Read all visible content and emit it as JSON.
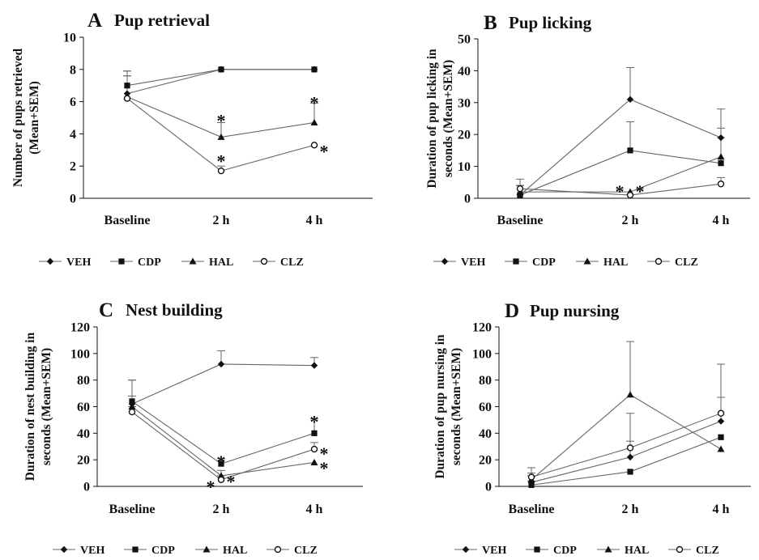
{
  "legend": [
    {
      "name": "VEH",
      "marker": "diamond"
    },
    {
      "name": "CDP",
      "marker": "square"
    },
    {
      "name": "HAL",
      "marker": "triangle"
    },
    {
      "name": "CLZ",
      "marker": "circle-open"
    }
  ],
  "colors": {
    "line": "#666666",
    "marker": "#111111",
    "text": "#111111"
  },
  "chart_data": [
    {
      "type": "line",
      "letter": "A",
      "title": "Pup retrieval",
      "ylabel_lines": [
        "Number of pups retrieved",
        "(Mean+SEM)"
      ],
      "categories": [
        "Baseline",
        "2 h",
        "4 h"
      ],
      "ylim": [
        0,
        10
      ],
      "yticks": [
        0,
        2,
        4,
        6,
        8,
        10
      ],
      "grid": false,
      "legend_position": "bottom",
      "series": [
        {
          "name": "VEH",
          "values": [
            6.5,
            8.0,
            8.0
          ],
          "sem": [
            1.4,
            0,
            0
          ]
        },
        {
          "name": "CDP",
          "values": [
            7.0,
            8.0,
            8.0
          ],
          "sem": [
            0.9,
            0,
            0
          ]
        },
        {
          "name": "HAL",
          "values": [
            6.3,
            3.8,
            4.7
          ],
          "sem": [
            1.3,
            0.9,
            1.2
          ]
        },
        {
          "name": "CLZ",
          "values": [
            6.2,
            1.7,
            3.3
          ],
          "sem": [
            1.4,
            0.3,
            0.0
          ]
        }
      ],
      "annotations": [
        {
          "text": "*",
          "x": "2 h",
          "y": 5.1
        },
        {
          "text": "*",
          "x": "2 h",
          "y": 2.6
        },
        {
          "text": "*",
          "x": "4 h",
          "y": 6.2
        },
        {
          "text": "*",
          "x": "4 h",
          "y": 3.2,
          "side": "right"
        }
      ]
    },
    {
      "type": "line",
      "letter": "B",
      "title": "Pup licking",
      "ylabel_lines": [
        "Duration of pup licking in",
        "seconds (Mean+SEM)"
      ],
      "categories": [
        "Baseline",
        "2 h",
        "4 h"
      ],
      "ylim": [
        0,
        50
      ],
      "yticks": [
        0,
        10,
        20,
        30,
        40,
        50
      ],
      "grid": false,
      "legend_position": "bottom",
      "series": [
        {
          "name": "VEH",
          "values": [
            1,
            31,
            19
          ],
          "sem": [
            3,
            10,
            9
          ]
        },
        {
          "name": "CDP",
          "values": [
            1,
            15,
            11
          ],
          "sem": [
            3,
            9,
            8
          ]
        },
        {
          "name": "HAL",
          "values": [
            2,
            2,
            13
          ],
          "sem": [
            2,
            0,
            9
          ]
        },
        {
          "name": "CLZ",
          "values": [
            3,
            1,
            4.5
          ],
          "sem": [
            3,
            0,
            2
          ]
        }
      ],
      "annotations": [
        {
          "text": "*",
          "x": "2 h",
          "y": 3.5,
          "side": "left"
        },
        {
          "text": "*",
          "x": "2 h",
          "y": 3.5,
          "side": "right"
        }
      ]
    },
    {
      "type": "line",
      "letter": "C",
      "title": "Nest building",
      "ylabel_lines": [
        "Duration of nest building in",
        "seconds (Mean+SEM)"
      ],
      "categories": [
        "Baseline",
        "2 h",
        "4 h"
      ],
      "ylim": [
        0,
        120
      ],
      "yticks": [
        0,
        20,
        40,
        60,
        80,
        100,
        120
      ],
      "grid": false,
      "legend_position": "bottom",
      "series": [
        {
          "name": "VEH",
          "values": [
            62,
            92,
            91
          ],
          "sem": [
            18,
            10,
            6
          ]
        },
        {
          "name": "CDP",
          "values": [
            64,
            17,
            40
          ],
          "sem": [
            16,
            4,
            11
          ]
        },
        {
          "name": "HAL",
          "values": [
            60,
            8,
            18
          ],
          "sem": [
            8,
            4,
            0
          ]
        },
        {
          "name": "CLZ",
          "values": [
            56,
            5,
            28
          ],
          "sem": [
            4,
            3,
            5
          ]
        }
      ],
      "annotations": [
        {
          "text": "*",
          "x": "2 h",
          "y": 22
        },
        {
          "text": "*",
          "x": "2 h",
          "y": 7,
          "side": "right"
        },
        {
          "text": "*",
          "x": "2 h",
          "y": 3,
          "side": "left"
        },
        {
          "text": "*",
          "x": "4 h",
          "y": 52
        },
        {
          "text": "*",
          "x": "4 h",
          "y": 28,
          "side": "right"
        },
        {
          "text": "*",
          "x": "4 h",
          "y": 17,
          "side": "right"
        }
      ]
    },
    {
      "type": "line",
      "letter": "D",
      "title": "Pup nursing",
      "ylabel_lines": [
        "Duration of pup nursing in",
        "seconds (Mean+SEM)"
      ],
      "categories": [
        "Baseline",
        "2 h",
        "4 h"
      ],
      "ylim": [
        0,
        120
      ],
      "yticks": [
        0,
        20,
        40,
        60,
        80,
        100,
        120
      ],
      "grid": false,
      "legend_position": "bottom",
      "series": [
        {
          "name": "VEH",
          "values": [
            3,
            22,
            49
          ],
          "sem": [
            5,
            12,
            18
          ]
        },
        {
          "name": "CDP",
          "values": [
            1,
            11,
            37
          ],
          "sem": [
            3,
            0,
            0
          ]
        },
        {
          "name": "HAL",
          "values": [
            5,
            69,
            28
          ],
          "sem": [
            5,
            40,
            0
          ]
        },
        {
          "name": "CLZ",
          "values": [
            7,
            29,
            55
          ],
          "sem": [
            7,
            26,
            37
          ]
        }
      ],
      "annotations": []
    }
  ]
}
